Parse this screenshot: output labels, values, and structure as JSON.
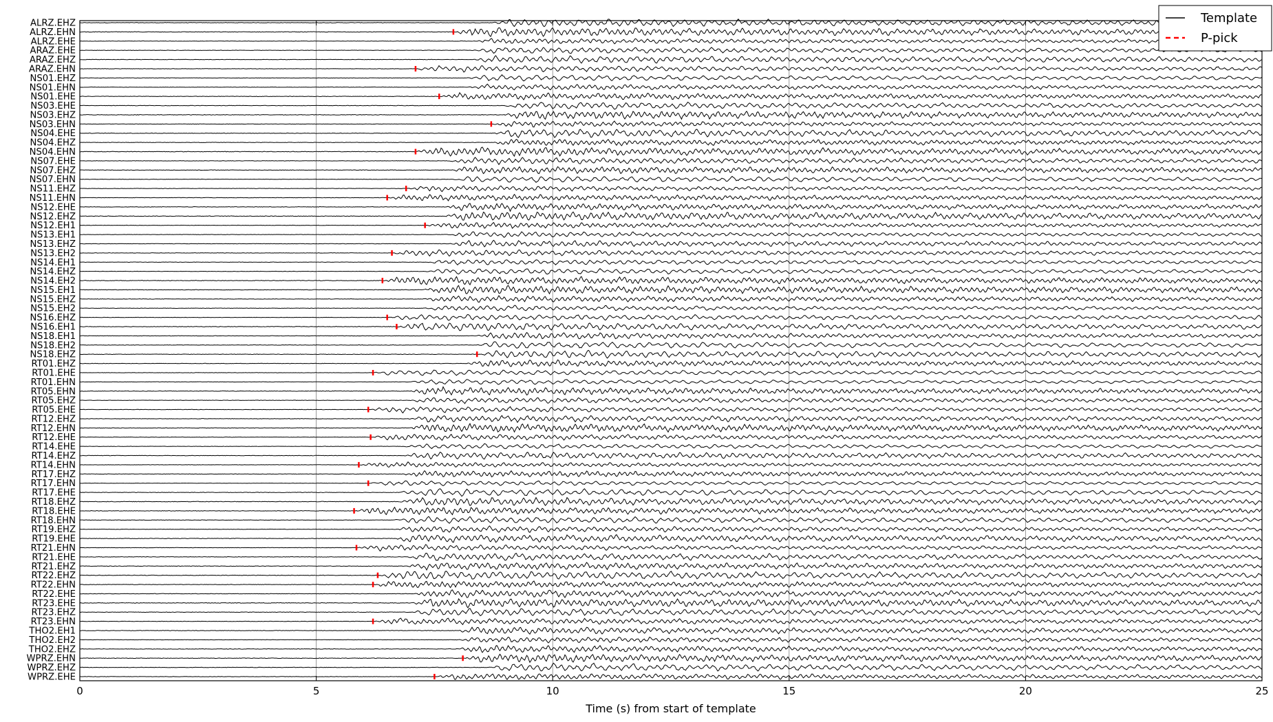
{
  "chart_data": {
    "type": "line",
    "title": "",
    "xlabel": "Time (s) from start of template",
    "ylabel": "",
    "xlim": [
      0,
      25
    ],
    "xticks": [
      "0",
      "5",
      "10",
      "15",
      "20",
      "25"
    ],
    "grid": true,
    "legend": {
      "placement": "top-right",
      "entries": [
        {
          "name": "Template",
          "style": "solid",
          "color": "#000000"
        },
        {
          "name": "P-pick",
          "style": "dashed",
          "color": "#ff0000"
        }
      ]
    },
    "channels": [
      "ALRZ.EHZ",
      "ALRZ.EHN",
      "ALRZ.EHE",
      "ARAZ.EHE",
      "ARAZ.EHZ",
      "ARAZ.EHN",
      "NS01.EHZ",
      "NS01.EHN",
      "NS01.EHE",
      "NS03.EHE",
      "NS03.EHZ",
      "NS03.EHN",
      "NS04.EHE",
      "NS04.EHZ",
      "NS04.EHN",
      "NS07.EHE",
      "NS07.EHZ",
      "NS07.EHN",
      "NS11.EHZ",
      "NS11.EHN",
      "NS12.EHE",
      "NS12.EHZ",
      "NS12.EH1",
      "NS13.EH1",
      "NS13.EHZ",
      "NS13.EH2",
      "NS14.EH1",
      "NS14.EHZ",
      "NS14.EH2",
      "NS15.EH1",
      "NS15.EHZ",
      "NS15.EH2",
      "NS16.EHZ",
      "NS16.EH1",
      "NS18.EH1",
      "NS18.EH2",
      "NS18.EHZ",
      "RT01.EHZ",
      "RT01.EHE",
      "RT01.EHN",
      "RT05.EHN",
      "RT05.EHZ",
      "RT05.EHE",
      "RT12.EHZ",
      "RT12.EHN",
      "RT12.EHE",
      "RT14.EHE",
      "RT14.EHZ",
      "RT14.EHN",
      "RT17.EHZ",
      "RT17.EHN",
      "RT17.EHE",
      "RT18.EHZ",
      "RT18.EHE",
      "RT18.EHN",
      "RT19.EHZ",
      "RT19.EHE",
      "RT21.EHN",
      "RT21.EHE",
      "RT21.EHZ",
      "RT22.EHZ",
      "RT22.EHN",
      "RT22.EHE",
      "RT23.EHE",
      "RT23.EHZ",
      "RT23.EHN",
      "THO2.EH1",
      "THO2.EH2",
      "THO2.EHZ",
      "WPRZ.EHN",
      "WPRZ.EHZ",
      "WPRZ.EHE"
    ],
    "p_picks": [
      {
        "channel": "ALRZ.EHN",
        "time": 7.9
      },
      {
        "channel": "ARAZ.EHN",
        "time": 7.1
      },
      {
        "channel": "NS01.EHE",
        "time": 7.6
      },
      {
        "channel": "NS03.EHN",
        "time": 8.7
      },
      {
        "channel": "NS04.EHN",
        "time": 7.1
      },
      {
        "channel": "NS11.EHZ",
        "time": 6.9
      },
      {
        "channel": "NS11.EHN",
        "time": 6.5
      },
      {
        "channel": "NS12.EH1",
        "time": 7.3
      },
      {
        "channel": "NS13.EH2",
        "time": 6.6
      },
      {
        "channel": "NS14.EH2",
        "time": 6.4
      },
      {
        "channel": "NS16.EHZ",
        "time": 6.5
      },
      {
        "channel": "NS16.EH1",
        "time": 6.7
      },
      {
        "channel": "NS18.EHZ",
        "time": 8.4
      },
      {
        "channel": "RT01.EHE",
        "time": 6.2
      },
      {
        "channel": "RT05.EHE",
        "time": 6.1
      },
      {
        "channel": "RT12.EHE",
        "time": 6.15
      },
      {
        "channel": "RT14.EHN",
        "time": 5.9
      },
      {
        "channel": "RT17.EHN",
        "time": 6.1
      },
      {
        "channel": "RT18.EHE",
        "time": 5.8
      },
      {
        "channel": "RT21.EHN",
        "time": 5.85
      },
      {
        "channel": "RT22.EHZ",
        "time": 6.3
      },
      {
        "channel": "RT22.EHN",
        "time": 6.2
      },
      {
        "channel": "RT23.EHN",
        "time": 6.2
      },
      {
        "channel": "WPRZ.EHN",
        "time": 8.1
      },
      {
        "channel": "WPRZ.EHE",
        "time": 7.5
      }
    ]
  }
}
